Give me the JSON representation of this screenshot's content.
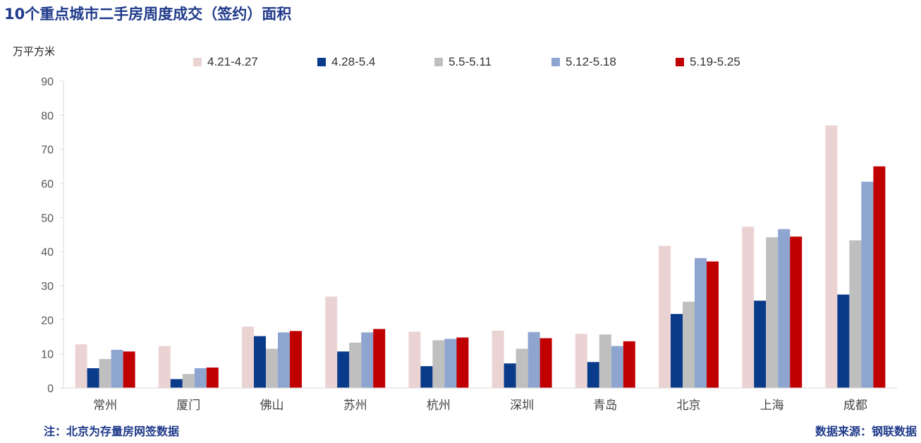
{
  "title": "10个重点城市二手房周度成交（签约）面积",
  "unit_label": "万平方米",
  "note": "注：北京为存量房网签数据",
  "source": "数据来源：钢联数据",
  "chart_data": {
    "type": "bar",
    "title": "10个重点城市二手房周度成交（签约）面积",
    "ylabel": "万平方米",
    "xlabel": "",
    "ylim": [
      0,
      90
    ],
    "yticks": [
      0,
      10,
      20,
      30,
      40,
      50,
      60,
      70,
      80,
      90
    ],
    "grid": false,
    "legend_position": "top",
    "categories": [
      "常州",
      "厦门",
      "佛山",
      "苏州",
      "杭州",
      "深圳",
      "青岛",
      "北京",
      "上海",
      "成都"
    ],
    "series": [
      {
        "name": "4.21-4.27",
        "color": "#ecd3d3",
        "values": [
          12.8,
          12.3,
          18.0,
          26.8,
          16.5,
          16.8,
          15.9,
          41.7,
          47.3,
          77.0
        ]
      },
      {
        "name": "4.28-5.4",
        "color": "#0a3a8a",
        "values": [
          5.8,
          2.6,
          15.2,
          10.7,
          6.4,
          7.2,
          7.6,
          21.7,
          25.6,
          27.4
        ]
      },
      {
        "name": "5.5-5.11",
        "color": "#bfbfbf",
        "values": [
          8.5,
          4.1,
          11.5,
          13.3,
          14.0,
          11.5,
          15.7,
          25.3,
          44.2,
          43.3
        ]
      },
      {
        "name": "5.12-5.18",
        "color": "#8ea6cf",
        "values": [
          11.2,
          5.8,
          16.3,
          16.3,
          14.4,
          16.4,
          12.3,
          38.1,
          46.6,
          60.5
        ]
      },
      {
        "name": "5.19-5.25",
        "color": "#c00000",
        "values": [
          10.7,
          6.0,
          16.7,
          17.3,
          14.8,
          14.6,
          13.7,
          37.1,
          44.4,
          65.0
        ]
      }
    ]
  }
}
